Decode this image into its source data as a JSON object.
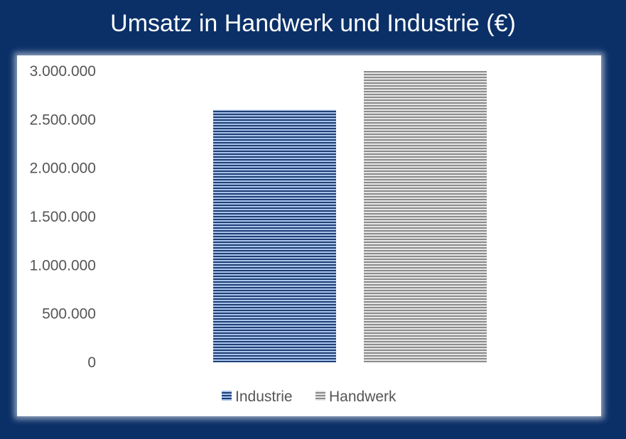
{
  "chart_data": {
    "type": "bar",
    "title": "Umsatz in Handwerk und Industrie (€)",
    "xlabel": "",
    "ylabel": "",
    "categories": [
      ""
    ],
    "series": [
      {
        "name": "Industrie",
        "values": [
          2600000
        ],
        "color": "#1f3f74",
        "pattern": "horizontal-stripes"
      },
      {
        "name": "Handwerk",
        "values": [
          3000000
        ],
        "color": "#8c8c8c",
        "pattern": "horizontal-stripes"
      }
    ],
    "ylim": [
      0,
      3000000
    ],
    "yticks": [
      0,
      500000,
      1000000,
      1500000,
      2000000,
      2500000,
      3000000
    ],
    "ytick_labels": [
      "0",
      "500.000",
      "1.000.000",
      "1.500.000",
      "2.000.000",
      "2.500.000",
      "3.000.000"
    ],
    "grid": false,
    "legend_position": "bottom"
  },
  "colors": {
    "frame": "#0b3068",
    "industrie_light": "#a9c4ec",
    "handwerk_light": "#e6e6e6"
  }
}
